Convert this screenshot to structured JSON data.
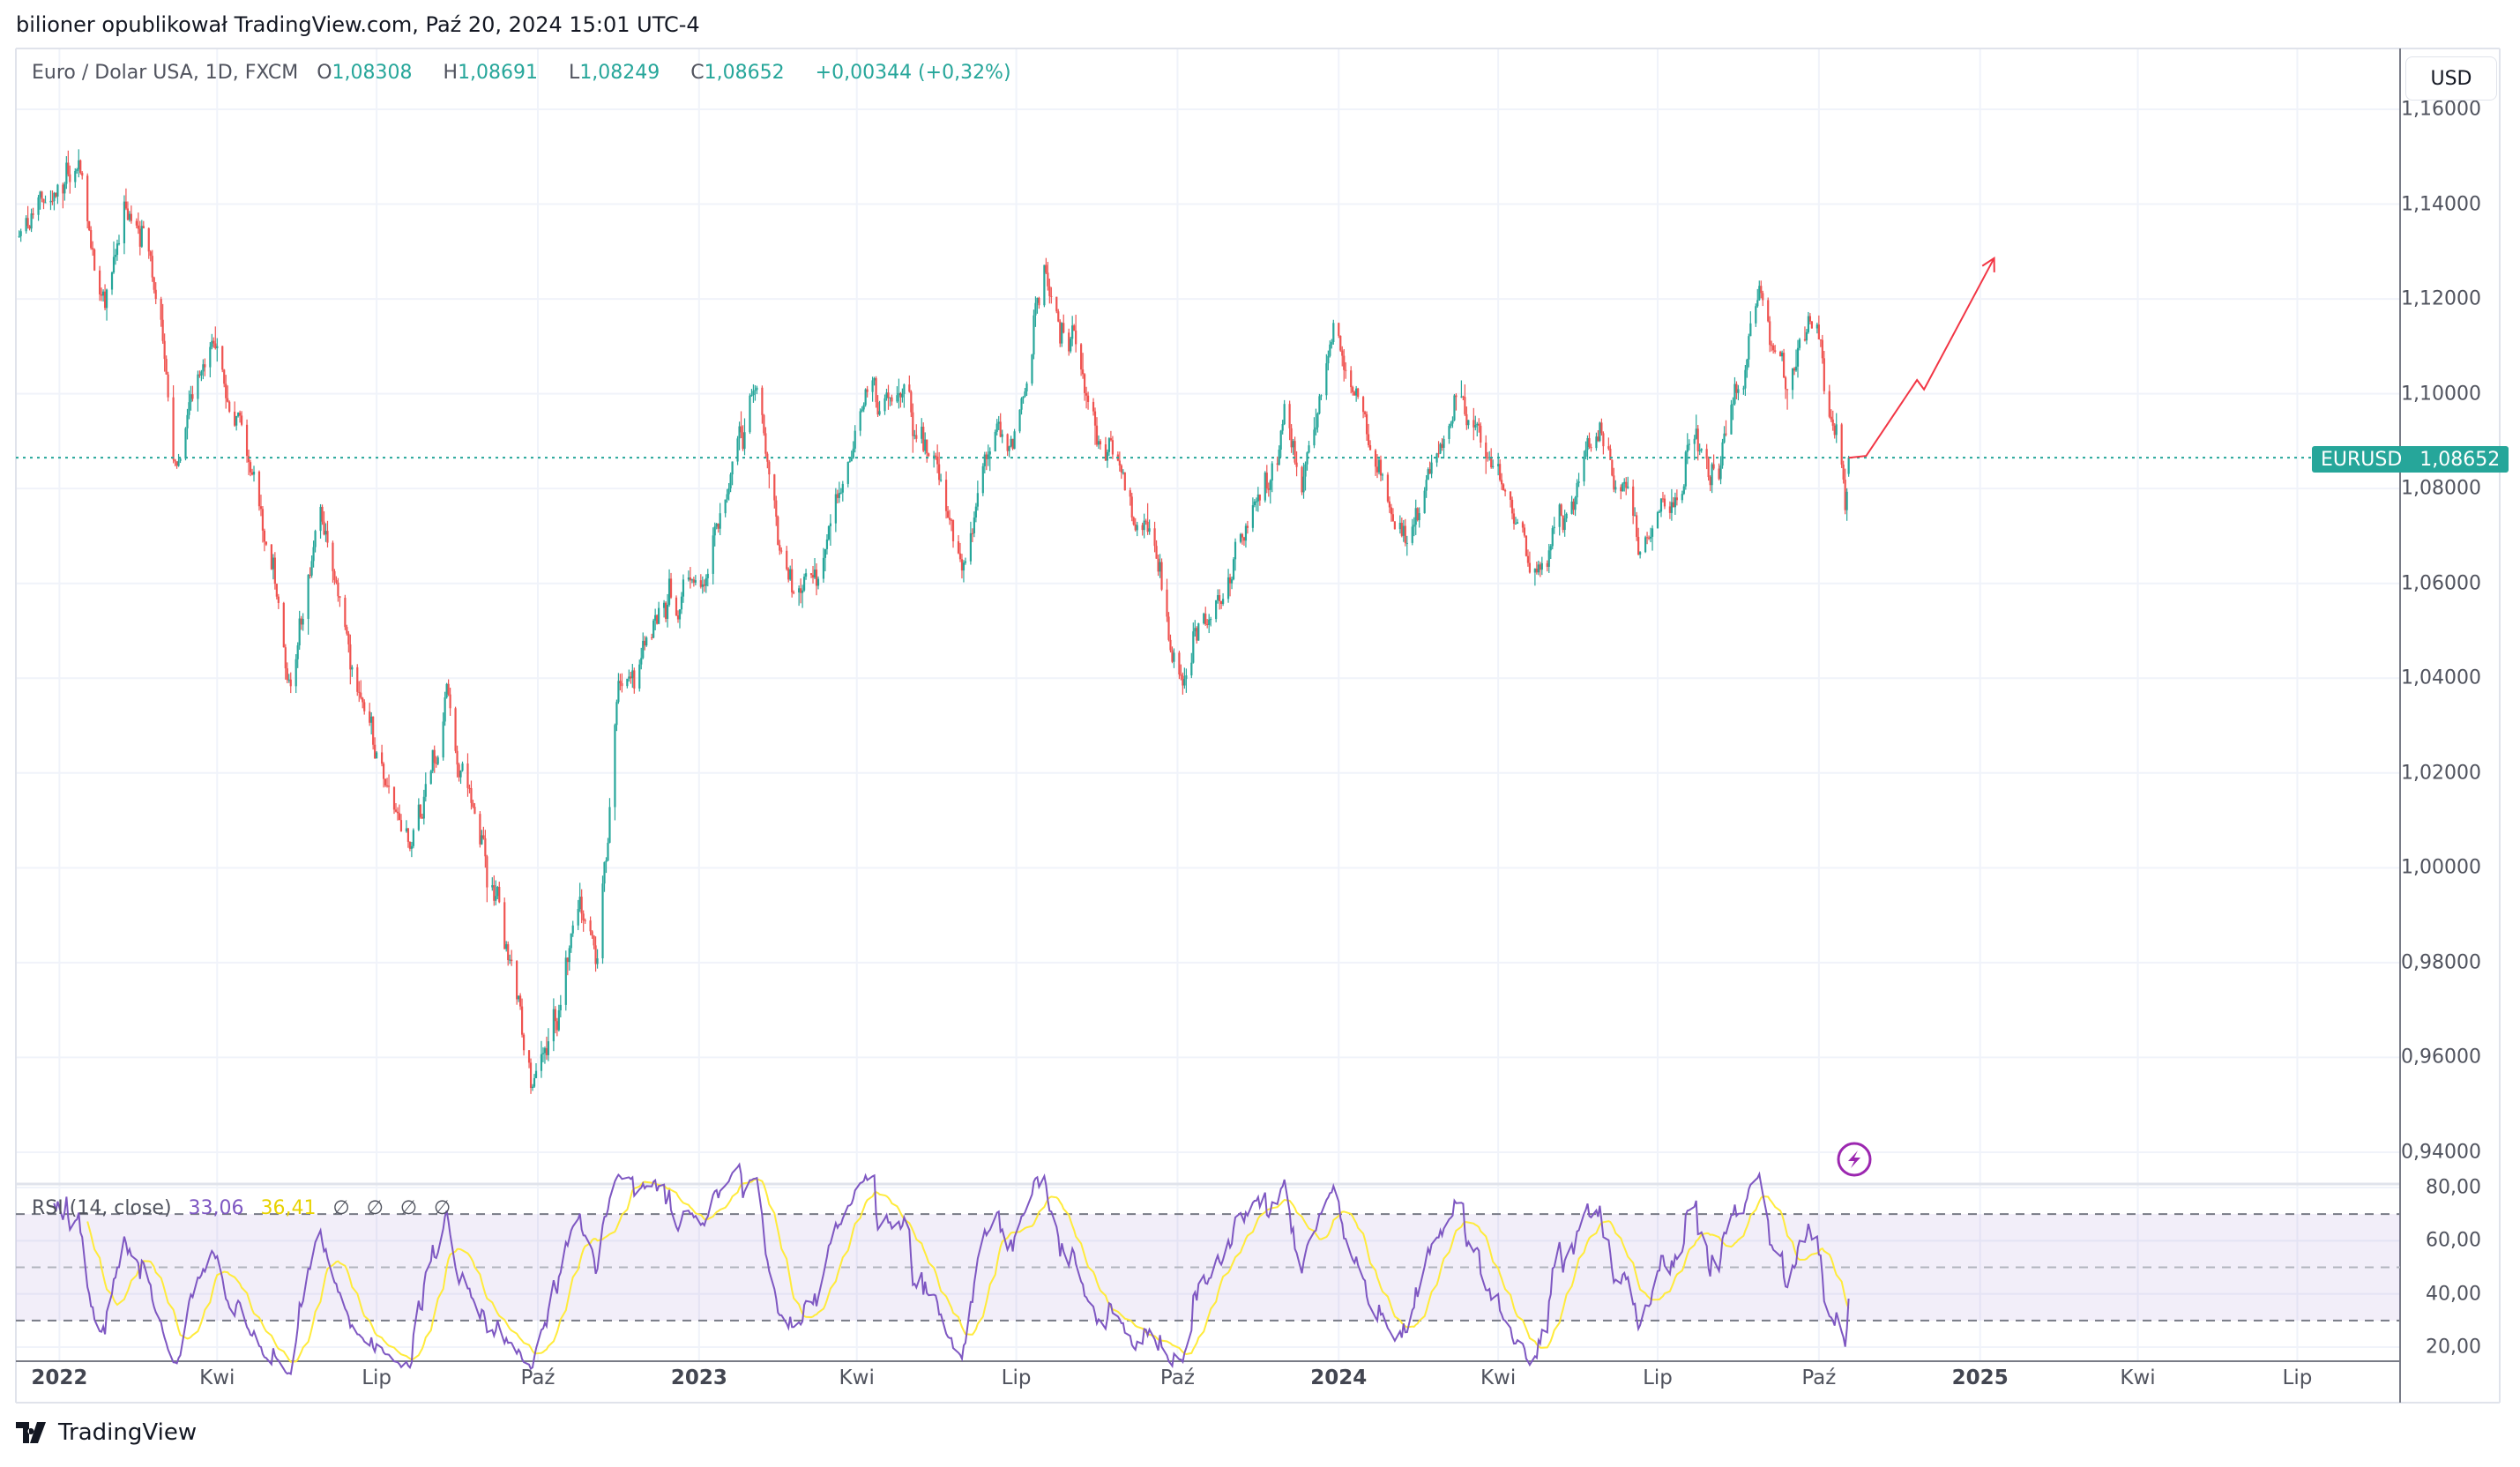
{
  "publisher_line": "bilioner opublikował TradingView.com, Paź 20, 2024 15:01 UTC-4",
  "legend": {
    "symbol_desc": "Euro / Dolar USA, 1D, FXCM",
    "open_label": "O",
    "open": "1,08308",
    "high_label": "H",
    "high": "1,08691",
    "low_label": "L",
    "low": "1,08249",
    "close_label": "C",
    "close": "1,08652",
    "change": "+0,00344 (+0,32%)"
  },
  "price_axis": {
    "currency_button": "USD",
    "ticks": [
      "1,16000",
      "1,14000",
      "1,12000",
      "1,10000",
      "1,08000",
      "1,06000",
      "1,04000",
      "1,02000",
      "1,00000",
      "0,98000",
      "0,96000",
      "0,94000"
    ],
    "last_symbol": "EURUSD",
    "last_price": "1,08652"
  },
  "rsi": {
    "title": "RSI (14, close)",
    "value": "33,06",
    "ma_value": "36,41",
    "na_values": [
      "∅",
      "∅",
      "∅",
      "∅"
    ],
    "ticks": [
      "80,00",
      "60,00",
      "40,00",
      "20,00"
    ],
    "levels": {
      "upper": 70,
      "middle": 50,
      "lower": 30
    }
  },
  "time_axis": [
    {
      "label": "2022",
      "date": "2022-01-01",
      "year": true
    },
    {
      "label": "Kwi",
      "date": "2022-04-01"
    },
    {
      "label": "Lip",
      "date": "2022-07-01"
    },
    {
      "label": "Paź",
      "date": "2022-10-01"
    },
    {
      "label": "2023",
      "date": "2023-01-01",
      "year": true
    },
    {
      "label": "Kwi",
      "date": "2023-04-01"
    },
    {
      "label": "Lip",
      "date": "2023-07-01"
    },
    {
      "label": "Paź",
      "date": "2023-10-01"
    },
    {
      "label": "2024",
      "date": "2024-01-01",
      "year": true
    },
    {
      "label": "Kwi",
      "date": "2024-04-01"
    },
    {
      "label": "Lip",
      "date": "2024-07-01"
    },
    {
      "label": "Paź",
      "date": "2024-10-01"
    },
    {
      "label": "2025",
      "date": "2025-01-01",
      "year": true
    },
    {
      "label": "Kwi",
      "date": "2025-04-01"
    },
    {
      "label": "Lip",
      "date": "2025-07-01"
    }
  ],
  "footer": {
    "brand": "TradingView"
  },
  "colors": {
    "up": "#26a69a",
    "down": "#ef5350",
    "rsi": "#7e57c2",
    "rsi_ma": "#ffeb3b",
    "arrow": "#f23645",
    "event_icon": "#9c27b0"
  },
  "icons": {
    "event": "lightning-icon",
    "logo": "tradingview-logo-icon"
  },
  "chart_data": {
    "type": "candlestick",
    "symbol": "EURUSD",
    "timeframe": "1D",
    "ylim": [
      0.94,
      1.16
    ],
    "grid": true,
    "close_path_approx": [
      [
        "2021-12-09",
        1.1305
      ],
      [
        "2022-01-13",
        1.146
      ],
      [
        "2022-01-27",
        1.117
      ],
      [
        "2022-02-08",
        1.1475
      ],
      [
        "2022-02-28",
        1.112
      ],
      [
        "2022-03-07",
        1.085
      ],
      [
        "2022-03-30",
        1.115
      ],
      [
        "2022-04-24",
        1.081
      ],
      [
        "2022-05-12",
        1.04
      ],
      [
        "2022-05-30",
        1.075
      ],
      [
        "2022-06-16",
        1.04
      ],
      [
        "2022-07-06",
        1.017
      ],
      [
        "2022-07-15",
        1.0
      ],
      [
        "2022-08-10",
        1.034
      ],
      [
        "2022-09-04",
        0.993
      ],
      [
        "2022-09-27",
        0.956
      ],
      [
        "2022-10-10",
        0.969
      ],
      [
        "2022-10-24",
        0.993
      ],
      [
        "2022-11-04",
        0.976
      ],
      [
        "2022-11-16",
        1.037
      ],
      [
        "2022-12-09",
        1.054
      ],
      [
        "2023-01-06",
        1.061
      ],
      [
        "2023-01-19",
        1.085
      ],
      [
        "2023-02-02",
        1.098
      ],
      [
        "2023-02-20",
        1.064
      ],
      [
        "2023-03-09",
        1.056
      ],
      [
        "2023-03-29",
        1.088
      ],
      [
        "2023-04-16",
        1.102
      ],
      [
        "2023-04-30",
        1.103
      ],
      [
        "2023-05-19",
        1.085
      ],
      [
        "2023-06-01",
        1.068
      ],
      [
        "2023-06-20",
        1.095
      ],
      [
        "2023-06-29",
        1.088
      ],
      [
        "2023-07-17",
        1.124
      ],
      [
        "2023-07-31",
        1.105
      ],
      [
        "2023-08-23",
        1.085
      ],
      [
        "2023-09-19",
        1.064
      ],
      [
        "2023-10-04",
        1.047
      ],
      [
        "2023-10-26",
        1.058
      ],
      [
        "2023-11-13",
        1.075
      ],
      [
        "2023-12-02",
        1.095
      ],
      [
        "2023-12-11",
        1.078
      ],
      [
        "2023-12-29",
        1.112
      ],
      [
        "2024-01-12",
        1.095
      ],
      [
        "2024-02-09",
        1.075
      ],
      [
        "2024-03-12",
        1.095
      ],
      [
        "2024-04-04",
        1.081
      ],
      [
        "2024-04-19",
        1.063
      ],
      [
        "2024-05-10",
        1.078
      ],
      [
        "2024-05-24",
        1.088
      ],
      [
        "2024-06-07",
        1.086
      ],
      [
        "2024-06-20",
        1.069
      ],
      [
        "2024-07-09",
        1.081
      ],
      [
        "2024-07-23",
        1.092
      ],
      [
        "2024-08-04",
        1.08
      ],
      [
        "2024-08-15",
        1.098
      ],
      [
        "2024-08-28",
        1.119
      ],
      [
        "2024-09-11",
        1.103
      ],
      [
        "2024-09-29",
        1.119
      ],
      [
        "2024-10-09",
        1.098
      ],
      [
        "2024-10-16",
        1.0827
      ],
      [
        "2024-10-18",
        1.08652
      ]
    ],
    "last_bar": {
      "date": "2024-10-18",
      "open": 1.08308,
      "high": 1.08691,
      "low": 1.08249,
      "close": 1.08652
    },
    "last_price_line": 1.08652,
    "projection_arrow": [
      [
        "2024-10-18",
        1.0865
      ],
      [
        "2024-10-28",
        1.0869
      ],
      [
        "2024-11-26",
        1.1029
      ],
      [
        "2024-11-30",
        1.1009
      ],
      [
        "2025-01-09",
        1.1286
      ]
    ],
    "rsi_ylim": [
      20,
      80
    ]
  }
}
